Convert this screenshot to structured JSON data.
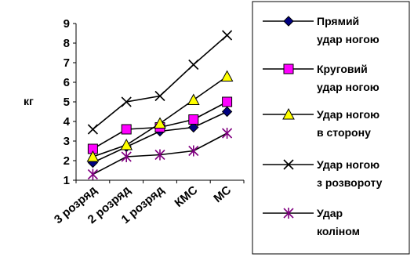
{
  "chart_data": {
    "type": "line",
    "ylabel": "кг",
    "ylim": [
      1,
      9
    ],
    "yticks": [
      1,
      2,
      3,
      4,
      5,
      6,
      7,
      8,
      9
    ],
    "grid": false,
    "legend_position": "right",
    "categories": [
      "3 розряд",
      "2 розряд",
      "1 розряд",
      "КМС",
      "МС"
    ],
    "series": [
      {
        "name_lines": [
          "Прямий",
          "удар ногою"
        ],
        "marker": "diamond",
        "color": "#000080",
        "values": [
          1.9,
          2.7,
          3.5,
          3.7,
          4.5
        ]
      },
      {
        "name_lines": [
          "Круговий",
          "удар ногою"
        ],
        "marker": "square",
        "color": "#ff00ff",
        "values": [
          2.6,
          3.6,
          3.7,
          4.1,
          5.0
        ]
      },
      {
        "name_lines": [
          "Удар ногою",
          "в сторону"
        ],
        "marker": "triangle",
        "color": "#ffff00",
        "values": [
          2.2,
          2.8,
          3.9,
          5.1,
          6.3
        ]
      },
      {
        "name_lines": [
          "Удар ногою",
          "з розвороту"
        ],
        "marker": "x",
        "color": "#000000",
        "values": [
          3.6,
          5.0,
          5.3,
          6.9,
          8.4
        ]
      },
      {
        "name_lines": [
          "Удар",
          "коліном"
        ],
        "marker": "star",
        "color": "#800080",
        "values": [
          1.3,
          2.2,
          2.3,
          2.5,
          3.4
        ]
      }
    ]
  }
}
